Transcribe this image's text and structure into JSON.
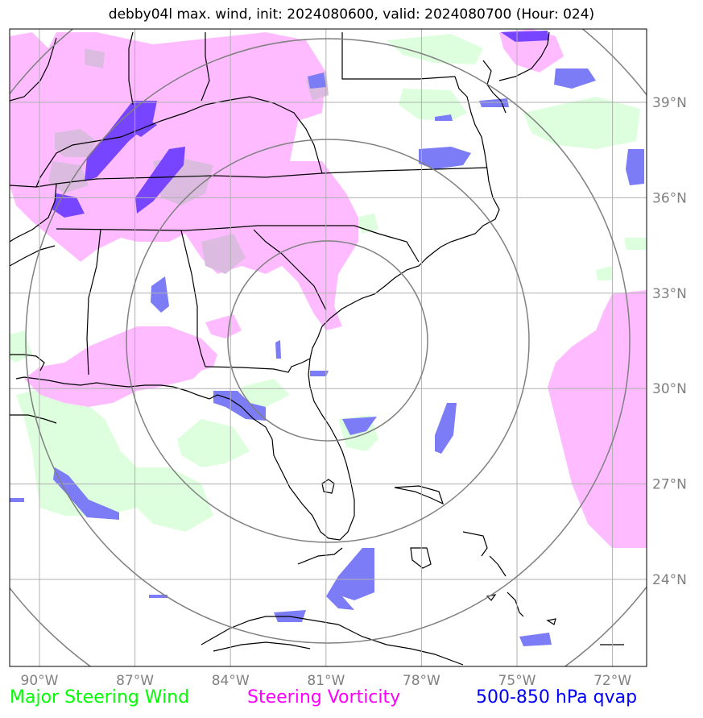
{
  "title": "debby04l max. wind, init: 2024080600, valid: 2024080700 (Hour: 024)",
  "lat_ticks": [
    {
      "label": "39°N",
      "value": 39
    },
    {
      "label": "36°N",
      "value": 36
    },
    {
      "label": "33°N",
      "value": 33
    },
    {
      "label": "30°N",
      "value": 30
    },
    {
      "label": "27°N",
      "value": 27
    },
    {
      "label": "24°N",
      "value": 24
    }
  ],
  "lon_ticks": [
    {
      "label": "90°W",
      "value": -90
    },
    {
      "label": "87°W",
      "value": -87
    },
    {
      "label": "84°W",
      "value": -84
    },
    {
      "label": "81°W",
      "value": -81
    },
    {
      "label": "78°W",
      "value": -78
    },
    {
      "label": "75°W",
      "value": -75
    },
    {
      "label": "72°W",
      "value": -72
    }
  ],
  "legend": [
    {
      "label": "Major Steering Wind",
      "color": "#00ff00"
    },
    {
      "label": "Steering Vorticity",
      "color": "#ff00ff"
    },
    {
      "label": "500-850 hPa qvap",
      "color": "#0000ff"
    }
  ],
  "colors": {
    "wind_fill": "#ddffdd",
    "vorticity_fill": "#ffbbff",
    "overlap_fill": "#dcbbe0",
    "qvap_fill": "#7c7cf6",
    "qvap_dark": "#7744ff",
    "grid": "#b0b0b0",
    "range_ring": "#808080",
    "coast": "#000000"
  }
}
